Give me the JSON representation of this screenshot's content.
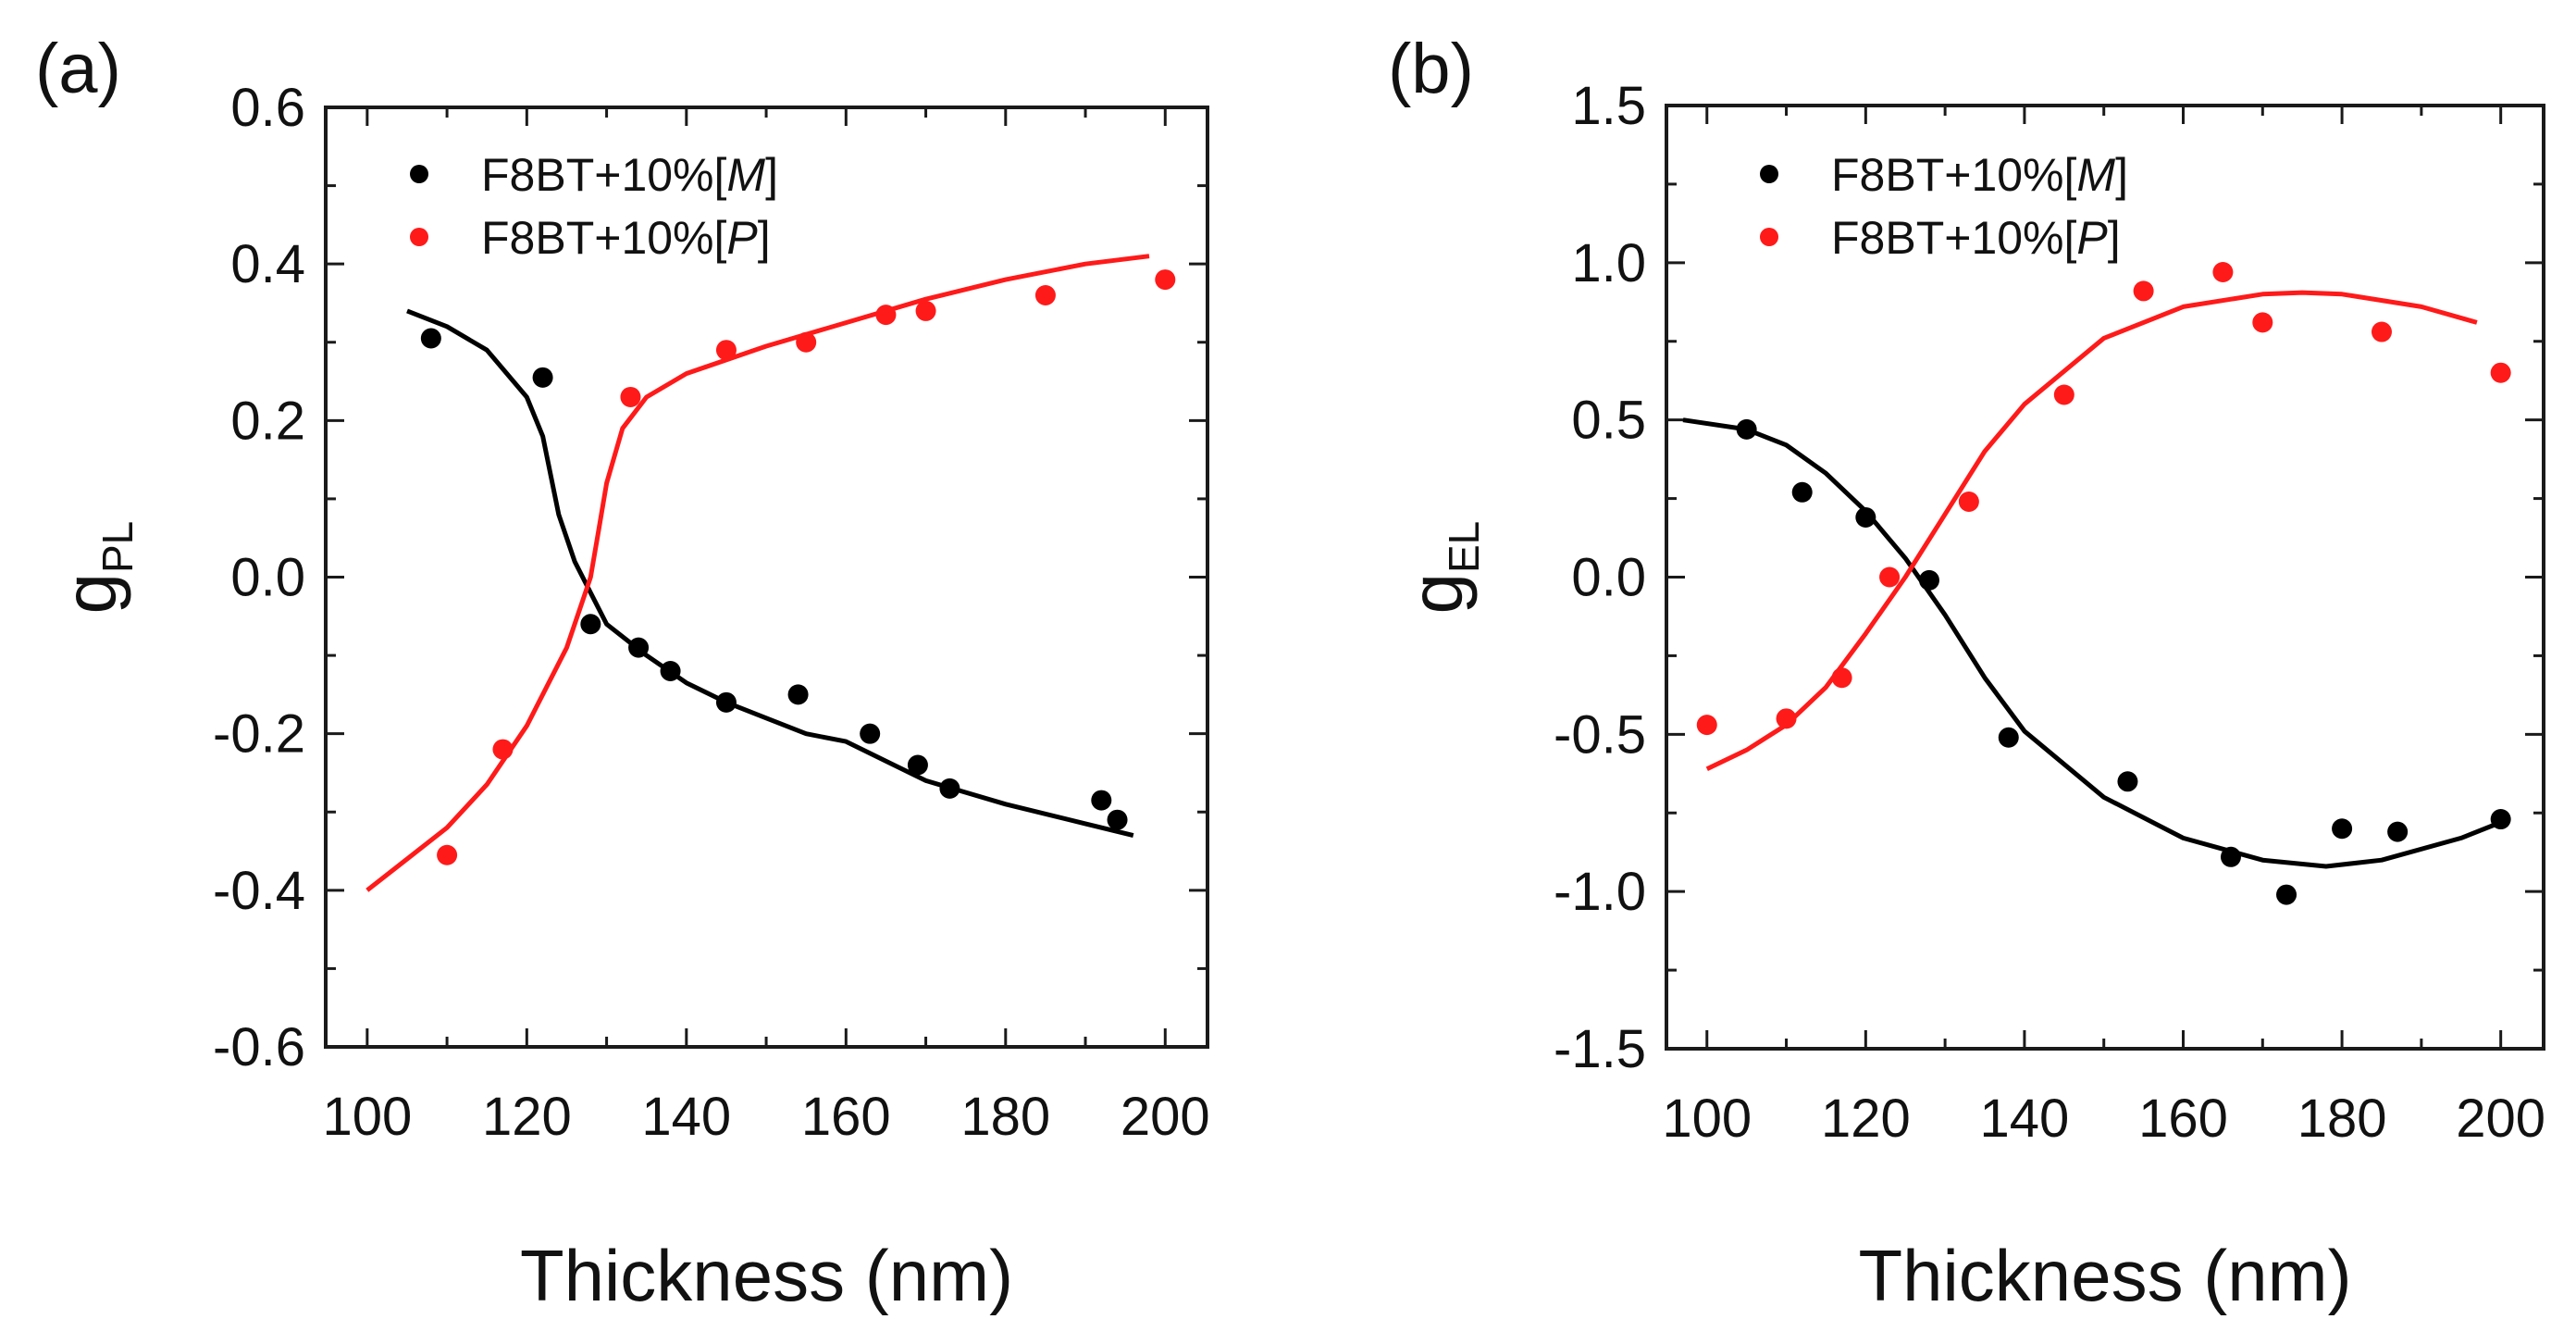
{
  "colors": {
    "series_m": "#000000",
    "series_p": "#ff1a1a",
    "axis": "#1a1a1a"
  },
  "chart_data": [
    {
      "panel_label": "(a)",
      "type": "scatter",
      "xlabel": "Thickness (nm)",
      "ylabel_main": "g",
      "ylabel_sub": "PL",
      "xlim": [
        94.8,
        205.3
      ],
      "ylim": [
        -0.6,
        0.6
      ],
      "xticks": [
        100,
        120,
        140,
        160,
        180,
        200
      ],
      "xtick_labels": [
        "100",
        "120",
        "140",
        "160",
        "180",
        "200"
      ],
      "yticks": [
        0.6,
        0.4,
        0.2,
        0.0,
        -0.2,
        -0.4,
        -0.6
      ],
      "ytick_labels": [
        "0.6",
        "0.4",
        "0.2",
        "0.0",
        "-0.2",
        "-0.4",
        "-0.6"
      ],
      "minor_x_step": 10,
      "minor_y_step": 0.1,
      "legend_position": "top-left",
      "series": [
        {
          "name_prefix": "F8BT+10%[",
          "name_italic": "M",
          "name_suffix": "]",
          "color": "#000000",
          "points": [
            [
              108,
              0.305
            ],
            [
              122,
              0.255
            ],
            [
              128,
              -0.06
            ],
            [
              134,
              -0.09
            ],
            [
              138,
              -0.12
            ],
            [
              145,
              -0.16
            ],
            [
              154,
              -0.15
            ],
            [
              163,
              -0.2
            ],
            [
              169,
              -0.24
            ],
            [
              173,
              -0.27
            ],
            [
              192,
              -0.285
            ],
            [
              194,
              -0.31
            ]
          ],
          "fit": [
            [
              105,
              0.34
            ],
            [
              110,
              0.32
            ],
            [
              115,
              0.29
            ],
            [
              120,
              0.23
            ],
            [
              122,
              0.18
            ],
            [
              124,
              0.08
            ],
            [
              126,
              0.02
            ],
            [
              128,
              -0.02
            ],
            [
              130,
              -0.06
            ],
            [
              135,
              -0.1
            ],
            [
              140,
              -0.135
            ],
            [
              145,
              -0.16
            ],
            [
              150,
              -0.18
            ],
            [
              155,
              -0.2
            ],
            [
              160,
              -0.21
            ],
            [
              165,
              -0.235
            ],
            [
              170,
              -0.26
            ],
            [
              180,
              -0.29
            ],
            [
              190,
              -0.315
            ],
            [
              196,
              -0.33
            ]
          ]
        },
        {
          "name_prefix": "F8BT+10%[",
          "name_italic": "P",
          "name_suffix": "]",
          "color": "#ff1a1a",
          "points": [
            [
              110,
              -0.355
            ],
            [
              117,
              -0.22
            ],
            [
              133,
              0.23
            ],
            [
              145,
              0.29
            ],
            [
              155,
              0.3
            ],
            [
              165,
              0.335
            ],
            [
              170,
              0.34
            ],
            [
              185,
              0.36
            ],
            [
              200,
              0.38
            ]
          ],
          "fit": [
            [
              100,
              -0.4
            ],
            [
              105,
              -0.36
            ],
            [
              110,
              -0.32
            ],
            [
              115,
              -0.265
            ],
            [
              120,
              -0.19
            ],
            [
              125,
              -0.09
            ],
            [
              127,
              -0.03
            ],
            [
              128,
              0.0
            ],
            [
              129,
              0.06
            ],
            [
              130,
              0.12
            ],
            [
              132,
              0.19
            ],
            [
              135,
              0.23
            ],
            [
              140,
              0.26
            ],
            [
              150,
              0.295
            ],
            [
              160,
              0.325
            ],
            [
              170,
              0.355
            ],
            [
              180,
              0.38
            ],
            [
              190,
              0.4
            ],
            [
              198,
              0.41
            ]
          ]
        }
      ]
    },
    {
      "panel_label": "(b)",
      "type": "scatter",
      "xlabel": "Thickness (nm)",
      "ylabel_main": "g",
      "ylabel_sub": "EL",
      "xlim": [
        94.9,
        205.4
      ],
      "ylim": [
        -1.5,
        1.5
      ],
      "xticks": [
        100,
        120,
        140,
        160,
        180,
        200
      ],
      "xtick_labels": [
        "100",
        "120",
        "140",
        "160",
        "180",
        "200"
      ],
      "yticks": [
        1.5,
        1.0,
        0.5,
        0.0,
        -0.5,
        -1.0,
        -1.5
      ],
      "ytick_labels": [
        "1.5",
        "1.0",
        "0.5",
        "0.0",
        "-0.5",
        "-1.0",
        "-1.5"
      ],
      "minor_x_step": 10,
      "minor_y_step": 0.25,
      "legend_position": "top-left",
      "series": [
        {
          "name_prefix": "F8BT+10%[",
          "name_italic": "M",
          "name_suffix": "]",
          "color": "#000000",
          "points": [
            [
              105,
              0.47
            ],
            [
              112,
              0.27
            ],
            [
              120,
              0.19
            ],
            [
              128,
              -0.01
            ],
            [
              138,
              -0.51
            ],
            [
              153,
              -0.65
            ],
            [
              166,
              -0.89
            ],
            [
              173,
              -1.01
            ],
            [
              180,
              -0.8
            ],
            [
              187,
              -0.81
            ],
            [
              200,
              -0.77
            ]
          ],
          "fit": [
            [
              97,
              0.5
            ],
            [
              105,
              0.47
            ],
            [
              110,
              0.42
            ],
            [
              115,
              0.33
            ],
            [
              120,
              0.21
            ],
            [
              125,
              0.06
            ],
            [
              130,
              -0.12
            ],
            [
              135,
              -0.32
            ],
            [
              140,
              -0.49
            ],
            [
              150,
              -0.7
            ],
            [
              160,
              -0.83
            ],
            [
              170,
              -0.9
            ],
            [
              178,
              -0.92
            ],
            [
              185,
              -0.9
            ],
            [
              195,
              -0.83
            ],
            [
              200,
              -0.78
            ]
          ]
        },
        {
          "name_prefix": "F8BT+10%[",
          "name_italic": "P",
          "name_suffix": "]",
          "color": "#ff1a1a",
          "points": [
            [
              100,
              -0.47
            ],
            [
              110,
              -0.45
            ],
            [
              117,
              -0.32
            ],
            [
              123,
              0.0
            ],
            [
              133,
              0.24
            ],
            [
              145,
              0.58
            ],
            [
              155,
              0.91
            ],
            [
              165,
              0.97
            ],
            [
              170,
              0.81
            ],
            [
              185,
              0.78
            ],
            [
              200,
              0.65
            ]
          ],
          "fit": [
            [
              100,
              -0.61
            ],
            [
              105,
              -0.55
            ],
            [
              110,
              -0.47
            ],
            [
              115,
              -0.35
            ],
            [
              120,
              -0.18
            ],
            [
              125,
              0.0
            ],
            [
              130,
              0.2
            ],
            [
              135,
              0.4
            ],
            [
              140,
              0.55
            ],
            [
              150,
              0.76
            ],
            [
              160,
              0.86
            ],
            [
              170,
              0.9
            ],
            [
              175,
              0.905
            ],
            [
              180,
              0.9
            ],
            [
              190,
              0.86
            ],
            [
              197,
              0.81
            ]
          ]
        }
      ]
    }
  ]
}
